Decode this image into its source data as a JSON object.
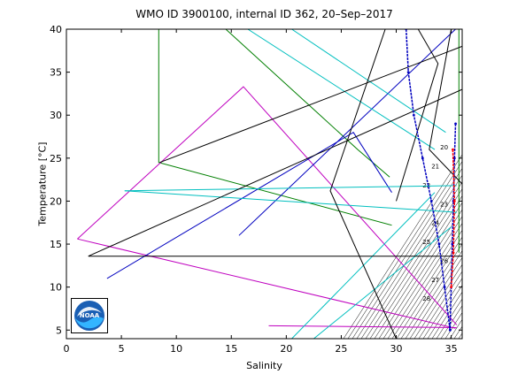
{
  "chart_data": {
    "type": "line",
    "title": "WMO ID 3900100, internal ID 362, 20–Sep–2017",
    "xlabel": "Salinity",
    "ylabel": "Temperature [°C]",
    "xlim": [
      0,
      36
    ],
    "ylim": [
      4,
      40
    ],
    "xticks": [
      0,
      5,
      10,
      15,
      20,
      25,
      30,
      35
    ],
    "yticks": [
      5,
      10,
      15,
      20,
      25,
      30,
      35,
      40
    ],
    "grid": false,
    "logo_text": "NOAA",
    "series": [
      {
        "color": "#007f00",
        "points": [
          [
            8.4,
            40
          ],
          [
            8.4,
            24.5
          ],
          [
            29.6,
            17.2
          ]
        ]
      },
      {
        "color": "#007f00",
        "points": [
          [
            14.5,
            40
          ],
          [
            26.5,
            26
          ],
          [
            29.4,
            22.8
          ]
        ]
      },
      {
        "color": "#007f00",
        "points": [
          [
            35.7,
            40
          ],
          [
            35.7,
            14
          ]
        ]
      },
      {
        "color": "#bf00bf",
        "points": [
          [
            1.0,
            15.6
          ],
          [
            16.1,
            33.3
          ],
          [
            35.5,
            5.6
          ]
        ]
      },
      {
        "color": "#bf00bf",
        "points": [
          [
            1.0,
            15.6
          ],
          [
            35.4,
            5.2
          ]
        ]
      },
      {
        "color": "#bf00bf",
        "points": [
          [
            18.4,
            5.5
          ],
          [
            35.5,
            5.3
          ]
        ]
      },
      {
        "color": "#0000bf",
        "points": [
          [
            3.7,
            11.0
          ],
          [
            26.1,
            28.0
          ],
          [
            29.6,
            21.0
          ]
        ]
      },
      {
        "color": "#0000bf",
        "points": [
          [
            15.7,
            16.0
          ],
          [
            35.4,
            40.0
          ]
        ]
      },
      {
        "color": "#00bfbf",
        "points": [
          [
            5.3,
            21.2
          ],
          [
            35.5,
            21.8
          ]
        ]
      },
      {
        "color": "#00bfbf",
        "points": [
          [
            5.3,
            21.2
          ],
          [
            35.5,
            18.7
          ]
        ]
      },
      {
        "color": "#00bfbf",
        "points": [
          [
            16.5,
            40.0
          ],
          [
            33.5,
            26.0
          ]
        ]
      },
      {
        "color": "#00bfbf",
        "points": [
          [
            20.5,
            40.0
          ],
          [
            34.5,
            28.0
          ]
        ]
      },
      {
        "color": "#00bfbf",
        "points": [
          [
            20.5,
            4.0
          ],
          [
            33.5,
            21.0
          ]
        ]
      },
      {
        "color": "#00bfbf",
        "points": [
          [
            22.5,
            4.0
          ],
          [
            35.0,
            17.0
          ]
        ]
      },
      {
        "color": "#000000",
        "points": [
          [
            2.0,
            13.6
          ],
          [
            36.0,
            13.6
          ]
        ]
      },
      {
        "color": "#000000",
        "points": [
          [
            2.0,
            13.6
          ],
          [
            36.0,
            33.0
          ]
        ]
      },
      {
        "color": "#000000",
        "points": [
          [
            8.5,
            24.5
          ],
          [
            36.0,
            38.0
          ]
        ]
      },
      {
        "color": "#000000",
        "points": [
          [
            29.0,
            40.0
          ],
          [
            24.0,
            21.2
          ],
          [
            30.0,
            4.0
          ]
        ]
      },
      {
        "color": "#000000",
        "points": [
          [
            35.0,
            40.0
          ],
          [
            33.0,
            26.0
          ],
          [
            36.0,
            22.0
          ]
        ]
      },
      {
        "color": "#000000",
        "points": [
          [
            32.0,
            40.0
          ],
          [
            33.8,
            36.0
          ],
          [
            30.0,
            20.0
          ]
        ]
      }
    ],
    "profiles": [
      {
        "color": "#0000bf",
        "points": [
          [
            30.9,
            40
          ],
          [
            31.1,
            35
          ],
          [
            31.6,
            30
          ],
          [
            32.4,
            25
          ],
          [
            33.2,
            20
          ],
          [
            33.9,
            15
          ],
          [
            34.4,
            10
          ],
          [
            34.9,
            5
          ]
        ]
      },
      {
        "color": "#0000bf",
        "points": [
          [
            35.4,
            29
          ],
          [
            35.3,
            25
          ],
          [
            35.2,
            20
          ],
          [
            35.1,
            15
          ],
          [
            35.0,
            10
          ],
          [
            34.9,
            5
          ]
        ]
      },
      {
        "color": "#ff0000",
        "points": [
          [
            35.15,
            26
          ],
          [
            35.3,
            20
          ],
          [
            35.2,
            14
          ],
          [
            35.0,
            10
          ]
        ]
      }
    ],
    "density_contours": [
      20,
      21,
      22,
      23,
      24,
      25,
      26,
      27,
      28
    ]
  }
}
